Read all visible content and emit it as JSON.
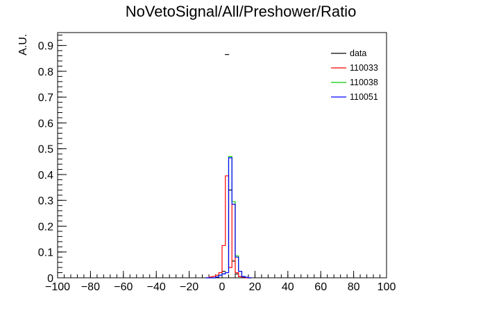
{
  "chart_data": {
    "type": "line",
    "title": "NoVetoSignal/All/Preshower/Ratio",
    "xlabel": "",
    "ylabel": "A.U.",
    "xlim": [
      -100,
      100
    ],
    "ylim": [
      0,
      0.95
    ],
    "x_ticks": [
      "−100",
      "−80",
      "−60",
      "−40",
      "−20",
      "0",
      "20",
      "40",
      "60",
      "80",
      "100"
    ],
    "y_ticks": [
      "0",
      "0.1",
      "0.2",
      "0.3",
      "0.4",
      "0.5",
      "0.6",
      "0.7",
      "0.8",
      "0.9"
    ],
    "legend_position": "top-right",
    "bin_edges": [
      -10,
      -8,
      -6,
      -4,
      -2,
      0,
      2,
      4,
      6,
      8,
      10,
      12,
      14,
      16,
      18
    ],
    "series": [
      {
        "name": "data",
        "color": "#000000",
        "style": "points",
        "points": [
          [
            1,
            0.025
          ],
          [
            5,
            0.34
          ],
          [
            7,
            0.065
          ],
          [
            3,
            0.865
          ],
          [
            9,
            0.015
          ],
          [
            11,
            0.005
          ]
        ]
      },
      {
        "name": "110033",
        "color": "#ff0000",
        "style": "step",
        "values": [
          0,
          0.003,
          0.005,
          0.01,
          0.02,
          0.125,
          0.395,
          0.04,
          0.285,
          0.02,
          0.005,
          0.003,
          0,
          0
        ]
      },
      {
        "name": "110038",
        "color": "#00cc00",
        "style": "step",
        "values": [
          0,
          0,
          0,
          0.003,
          0.01,
          0.015,
          0.02,
          0.47,
          0.295,
          0.085,
          0.025,
          0.005,
          0.002,
          0
        ]
      },
      {
        "name": "110051",
        "color": "#0000ff",
        "style": "step",
        "values": [
          0,
          0,
          0,
          0.003,
          0.01,
          0.015,
          0.02,
          0.465,
          0.285,
          0.08,
          0.025,
          0.005,
          0.002,
          0
        ]
      }
    ]
  }
}
